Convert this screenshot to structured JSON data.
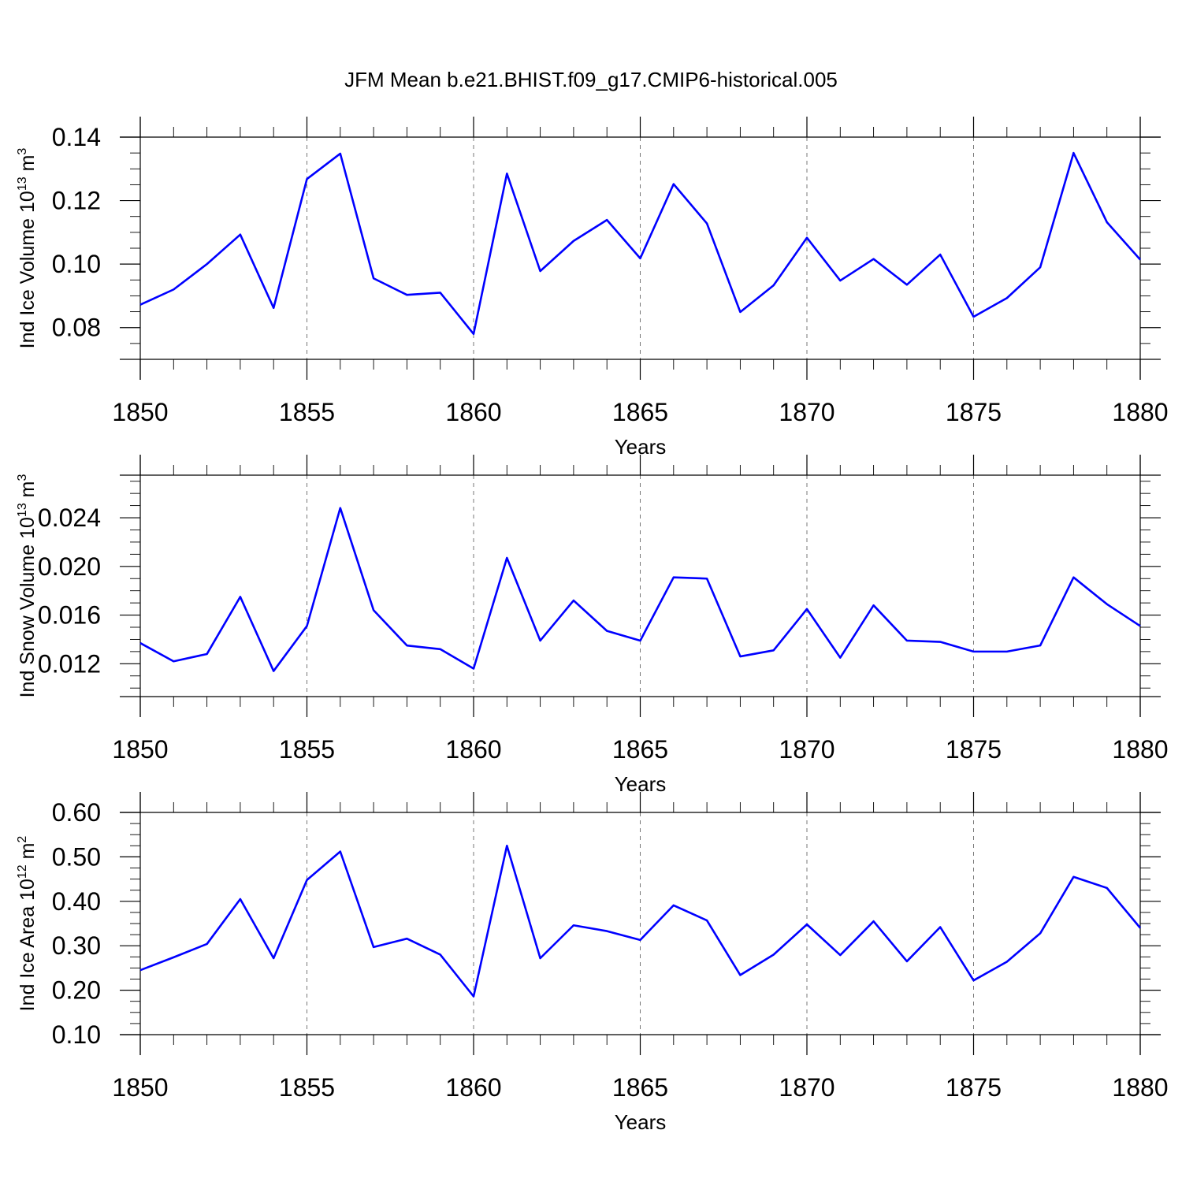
{
  "figure_title": "JFM Mean b.e21.BHIST.f09_g17.CMIP6-historical.005",
  "colors": {
    "series": "#0000ff",
    "grid": "#777777",
    "axis": "#000000"
  },
  "chart_data": [
    {
      "type": "line",
      "xlabel": "Years",
      "ylabel": {
        "main": "Ind Ice Volume 10",
        "exp": "13",
        "unit": " m",
        "unit_exp": "3"
      },
      "xlim": [
        1850,
        1880
      ],
      "ylim": [
        0.07,
        0.14
      ],
      "xticks": [
        1850,
        1855,
        1860,
        1865,
        1870,
        1875,
        1880
      ],
      "xtick_labels": [
        "1850",
        "1855",
        "1860",
        "1865",
        "1870",
        "1875",
        "1880"
      ],
      "yticks": [
        0.08,
        0.1,
        0.12,
        0.14
      ],
      "ytick_labels": [
        "0.08",
        "0.10",
        "0.12",
        "0.14"
      ],
      "x": [
        1850,
        1851,
        1852,
        1853,
        1854,
        1855,
        1856,
        1857,
        1858,
        1859,
        1860,
        1861,
        1862,
        1863,
        1864,
        1865,
        1866,
        1867,
        1868,
        1869,
        1870,
        1871,
        1872,
        1873,
        1874,
        1875,
        1876,
        1877,
        1878,
        1879,
        1880
      ],
      "values": [
        0.0872,
        0.092,
        0.1,
        0.1093,
        0.0862,
        0.1268,
        0.1348,
        0.0955,
        0.0903,
        0.091,
        0.078,
        0.1285,
        0.0978,
        0.1073,
        0.1139,
        0.1018,
        0.1252,
        0.1128,
        0.0849,
        0.0933,
        0.1083,
        0.0948,
        0.1016,
        0.0935,
        0.103,
        0.0834,
        0.0893,
        0.099,
        0.135,
        0.1132,
        0.1014
      ],
      "grid": "vertical dashed"
    },
    {
      "type": "line",
      "xlabel": "Years",
      "ylabel": {
        "main": "Ind Snow Volume 10",
        "exp": "13",
        "unit": " m",
        "unit_exp": "3"
      },
      "xlim": [
        1850,
        1880
      ],
      "ylim": [
        0.0093,
        0.0275
      ],
      "xticks": [
        1850,
        1855,
        1860,
        1865,
        1870,
        1875,
        1880
      ],
      "xtick_labels": [
        "1850",
        "1855",
        "1860",
        "1865",
        "1870",
        "1875",
        "1880"
      ],
      "yticks": [
        0.012,
        0.016,
        0.02,
        0.024
      ],
      "ytick_labels": [
        "0.012",
        "0.016",
        "0.020",
        "0.024"
      ],
      "x": [
        1850,
        1851,
        1852,
        1853,
        1854,
        1855,
        1856,
        1857,
        1858,
        1859,
        1860,
        1861,
        1862,
        1863,
        1864,
        1865,
        1866,
        1867,
        1868,
        1869,
        1870,
        1871,
        1872,
        1873,
        1874,
        1875,
        1876,
        1877,
        1878,
        1879,
        1880
      ],
      "values": [
        0.0137,
        0.0122,
        0.0128,
        0.0175,
        0.0114,
        0.0151,
        0.0248,
        0.0164,
        0.0135,
        0.0132,
        0.0116,
        0.0207,
        0.0139,
        0.0172,
        0.0147,
        0.0139,
        0.0191,
        0.019,
        0.0126,
        0.0131,
        0.0165,
        0.0125,
        0.0168,
        0.0139,
        0.0138,
        0.013,
        0.013,
        0.0135,
        0.0191,
        0.0169,
        0.0151
      ],
      "grid": "vertical dashed"
    },
    {
      "type": "line",
      "xlabel": "Years",
      "ylabel": {
        "main": "Ind Ice Area 10",
        "exp": "12",
        "unit": " m",
        "unit_exp": "2"
      },
      "xlim": [
        1850,
        1880
      ],
      "ylim": [
        0.1,
        0.6
      ],
      "xticks": [
        1850,
        1855,
        1860,
        1865,
        1870,
        1875,
        1880
      ],
      "xtick_labels": [
        "1850",
        "1855",
        "1860",
        "1865",
        "1870",
        "1875",
        "1880"
      ],
      "yticks": [
        0.1,
        0.2,
        0.3,
        0.4,
        0.5,
        0.6
      ],
      "ytick_labels": [
        "0.10",
        "0.20",
        "0.30",
        "0.40",
        "0.50",
        "0.60"
      ],
      "x": [
        1850,
        1851,
        1852,
        1853,
        1854,
        1855,
        1856,
        1857,
        1858,
        1859,
        1860,
        1861,
        1862,
        1863,
        1864,
        1865,
        1866,
        1867,
        1868,
        1869,
        1870,
        1871,
        1872,
        1873,
        1874,
        1875,
        1876,
        1877,
        1878,
        1879,
        1880
      ],
      "values": [
        0.245,
        0.274,
        0.304,
        0.405,
        0.272,
        0.448,
        0.512,
        0.297,
        0.316,
        0.28,
        0.186,
        0.525,
        0.272,
        0.346,
        0.333,
        0.313,
        0.391,
        0.357,
        0.234,
        0.28,
        0.348,
        0.279,
        0.355,
        0.265,
        0.342,
        0.222,
        0.264,
        0.328,
        0.455,
        0.43,
        0.34
      ],
      "grid": "vertical dashed"
    }
  ]
}
